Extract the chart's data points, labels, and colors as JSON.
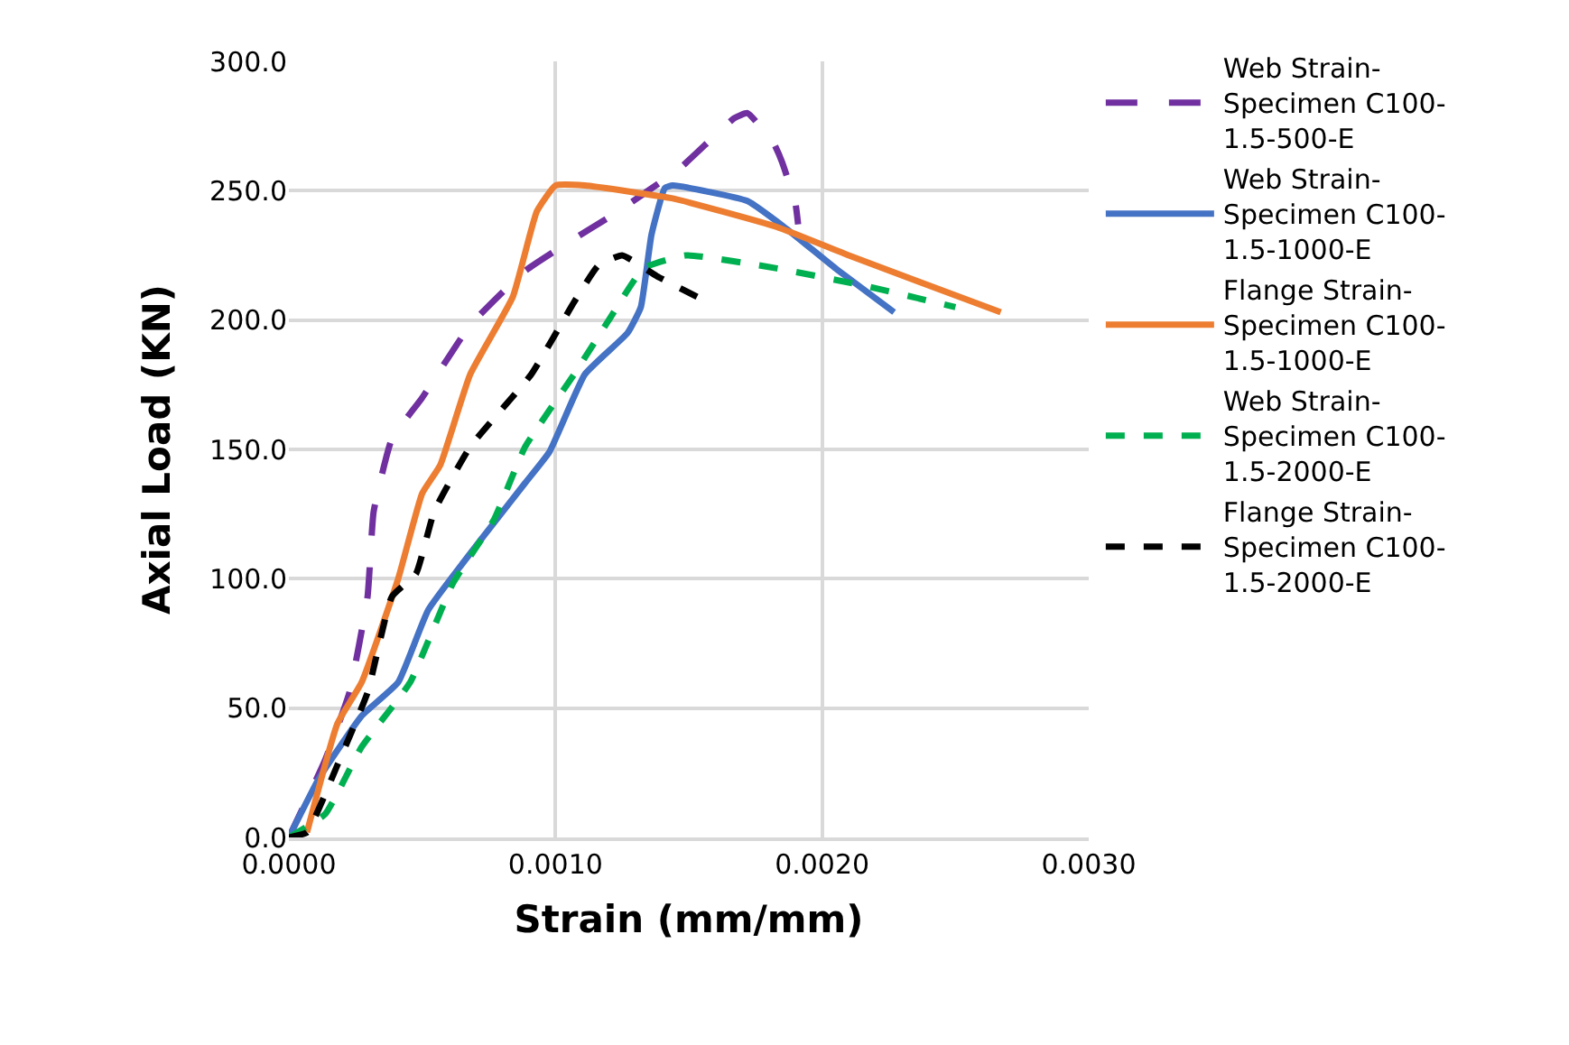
{
  "chart_data": {
    "type": "line",
    "xlabel": "Strain (mm/mm)",
    "ylabel": "Axial Load (KN)",
    "xlim": [
      0,
      0.003
    ],
    "xticks": [
      {
        "value": 0,
        "label": "0.0000"
      },
      {
        "value": 0.001,
        "label": "0.0010"
      },
      {
        "value": 0.002,
        "label": "0.0020"
      },
      {
        "value": 0.003,
        "label": "0.0030"
      }
    ],
    "ylim": [
      0,
      300
    ],
    "yticks": [
      {
        "value": 0,
        "label": "0.0"
      },
      {
        "value": 50,
        "label": "50.0"
      },
      {
        "value": 100,
        "label": "100.0"
      },
      {
        "value": 150,
        "label": "150.0"
      },
      {
        "value": 200,
        "label": "200.0"
      },
      {
        "value": 250,
        "label": "250.0"
      },
      {
        "value": 300,
        "label": "300.0"
      }
    ],
    "grid": true,
    "legend": "right",
    "marker": "none",
    "series": [
      {
        "name": "Web Strain-Specimen C100-1.5-500-E",
        "color": "#7030a0",
        "line_style": "dashed",
        "x": [
          0,
          0.000136,
          0.000227,
          0.000295,
          0.000318,
          0.000386,
          0.0005,
          0.00068,
          0.000886,
          0.00111,
          0.00122,
          0.00147,
          0.00167,
          0.00172,
          0.00182,
          0.00185,
          0.0019,
          0.00191
        ],
        "values": [
          0,
          30,
          56,
          93,
          126,
          154,
          170,
          198,
          219,
          234,
          241,
          259,
          278,
          280,
          268,
          261,
          245,
          237
        ]
      },
      {
        "name": "Web Strain-Specimen C100-1.5-1000-E",
        "color": "#4472c4",
        "line_style": "solid",
        "x": [
          0,
          0.000114,
          0.000273,
          0.00041,
          0.000523,
          0.000727,
          0.000886,
          0.000977,
          0.00111,
          0.00127,
          0.00132,
          0.00136,
          0.00141,
          0.00144,
          0.00172,
          0.00187,
          0.00205,
          0.00227
        ],
        "values": [
          0,
          23,
          47,
          60,
          88,
          116,
          137,
          149,
          179,
          195,
          205,
          233,
          251,
          252,
          246,
          235,
          220,
          203
        ]
      },
      {
        "name": "Flange Strain-Specimen C100-1.5-1000-E",
        "color": "#ed7d31",
        "line_style": "solid",
        "x": [
          6.8e-05,
          0.000182,
          0.000273,
          0.00041,
          0.0005,
          0.000568,
          0.00068,
          0.00084,
          0.00093,
          0.001,
          0.00111,
          0.00144,
          0.00183,
          0.0021,
          0.00267
        ],
        "values": [
          2,
          44,
          60,
          100,
          133,
          144,
          179,
          209,
          242,
          252,
          252,
          247,
          236,
          225,
          203
        ]
      },
      {
        "name": "Web Strain-Specimen C100-1.5-2000-E",
        "color": "#00b050",
        "line_style": "dashed",
        "x": [
          0,
          0.000136,
          0.000273,
          0.000455,
          0.000614,
          0.00077,
          0.000886,
          0.00107,
          0.0012,
          0.00133,
          0.00149,
          0.00183,
          0.00217,
          0.0025
        ],
        "values": [
          0,
          9,
          35,
          60,
          98,
          123,
          151,
          179,
          200,
          220,
          225,
          220,
          213,
          205
        ]
      },
      {
        "name": "Flange Strain-Specimen C100-1.5-2000-E",
        "color": "#000000",
        "line_style": "dashed",
        "x": [
          0,
          6.8e-05,
          0.000182,
          0.000295,
          0.000386,
          0.000477,
          0.000545,
          0.00068,
          0.000909,
          0.00107,
          0.00116,
          0.00125,
          0.00138,
          0.00155
        ],
        "values": [
          0,
          2,
          28,
          56,
          93,
          102,
          126,
          151,
          179,
          207,
          221,
          225,
          217,
          208
        ]
      }
    ]
  }
}
